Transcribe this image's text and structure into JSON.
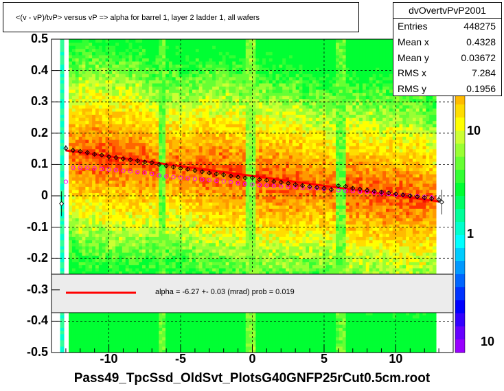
{
  "chart_data": {
    "type": "heatmap",
    "title": "<(v - vP)/tvP> versus  vP => alpha for barrel 1, layer 2 ladder 1, all wafers",
    "xlim": [
      -14,
      14
    ],
    "ylim": [
      -0.5,
      0.5
    ],
    "x_ticks": [
      "-10",
      "-5",
      "0",
      "5",
      "10"
    ],
    "x_tick_values": [
      -10,
      -5,
      0,
      5,
      10
    ],
    "y_ticks": [
      "0.5",
      "0.4",
      "0.3",
      "0.2",
      "0.1",
      "0",
      "-0.1",
      "-0.2",
      "-0.3",
      "-0.4",
      "-0.5"
    ],
    "y_tick_values": [
      0.5,
      0.4,
      0.3,
      0.2,
      0.1,
      0,
      -0.1,
      -0.2,
      -0.3,
      -0.4,
      -0.5
    ],
    "z_scale": "log",
    "z_ticks": [
      "10",
      "1",
      "10"
    ],
    "z_tick_values": [
      10,
      1,
      0.1
    ],
    "grid": true,
    "stats": {
      "name": "dvOvertvPvP2001",
      "rows": [
        {
          "key": "Entries",
          "value": "448275"
        },
        {
          "key": "Mean x",
          "value": "0.4328"
        },
        {
          "key": "Mean y",
          "value": "0.03672"
        },
        {
          "key": "RMS x",
          "value": "7.284"
        },
        {
          "key": "RMS y",
          "value": "0.1956"
        }
      ]
    },
    "fit": {
      "text": "alpha =   -6.27 +-  0.03 (mrad) prob = 0.019",
      "x": [
        -13,
        13
      ],
      "y": [
        0.145,
        -0.018
      ],
      "color": "#ff0000"
    },
    "profile_black": {
      "x": [
        -13.0,
        -12.5,
        -12.0,
        -11.5,
        -11.0,
        -10.5,
        -10.0,
        -9.5,
        -9.0,
        -8.5,
        -8.0,
        -7.5,
        -7.0,
        -6.5,
        -6.0,
        -5.5,
        -5.0,
        -4.5,
        -4.0,
        -3.5,
        -3.0,
        -2.5,
        -2.0,
        -1.5,
        -1.0,
        -0.5,
        0.0,
        0.5,
        1.0,
        1.5,
        2.0,
        2.5,
        3.0,
        3.5,
        4.0,
        4.5,
        5.0,
        5.5,
        6.0,
        6.5,
        7.0,
        7.5,
        8.0,
        8.5,
        9.0,
        9.5,
        10.0,
        10.5,
        11.0,
        11.5,
        12.0,
        12.5,
        13.0
      ],
      "y": [
        0.152,
        0.145,
        0.142,
        0.138,
        0.133,
        0.13,
        0.125,
        0.122,
        0.118,
        0.115,
        0.112,
        0.108,
        0.106,
        0.1,
        0.096,
        0.092,
        0.088,
        0.085,
        0.081,
        0.077,
        0.073,
        0.07,
        0.067,
        0.063,
        0.06,
        0.057,
        0.058,
        0.052,
        0.05,
        0.046,
        0.043,
        0.04,
        0.036,
        0.033,
        0.03,
        0.027,
        0.024,
        0.02,
        0.032,
        0.03,
        0.024,
        0.021,
        0.018,
        0.015,
        0.012,
        0.009,
        0.006,
        0.003,
        0.0,
        -0.003,
        -0.006,
        -0.009,
        -0.012
      ],
      "err": [
        0.01,
        0.008,
        0.005,
        0.004,
        0.004,
        0.004,
        0.004,
        0.004,
        0.004,
        0.004,
        0.004,
        0.004,
        0.005,
        0.006,
        0.006,
        0.005,
        0.005,
        0.005,
        0.005,
        0.005,
        0.005,
        0.005,
        0.005,
        0.005,
        0.005,
        0.005,
        0.005,
        0.005,
        0.005,
        0.005,
        0.005,
        0.005,
        0.005,
        0.005,
        0.005,
        0.005,
        0.005,
        0.006,
        0.006,
        0.005,
        0.005,
        0.005,
        0.005,
        0.005,
        0.005,
        0.005,
        0.005,
        0.005,
        0.005,
        0.005,
        0.006,
        0.008,
        0.01
      ]
    },
    "profile_magenta": {
      "x": [
        -13.0,
        -12.5,
        -12.0,
        -11.5,
        -11.0,
        -10.5,
        -10.0,
        -9.5,
        -9.0,
        -8.5,
        -8.0,
        -7.5,
        -7.0,
        -6.5,
        -6.0,
        -5.5,
        -5.0,
        -4.5,
        -4.0,
        -3.5,
        -3.0,
        -2.5,
        -2.0,
        -1.5,
        -1.0,
        -0.5,
        0.0,
        0.5,
        1.0,
        1.5,
        2.0,
        2.5,
        3.0,
        3.5,
        4.0,
        4.5,
        5.0,
        5.5,
        6.0,
        6.5,
        7.0,
        7.5,
        8.0,
        8.5,
        9.0,
        9.5,
        10.0,
        10.5,
        11.0,
        11.5,
        12.0,
        12.5
      ],
      "y": [
        0.045,
        0.09,
        0.09,
        0.09,
        0.088,
        0.086,
        0.084,
        0.082,
        0.08,
        0.078,
        0.076,
        0.074,
        0.07,
        0.065,
        0.062,
        0.06,
        0.058,
        0.056,
        0.054,
        0.052,
        0.05,
        0.048,
        0.046,
        0.044,
        0.04,
        0.038,
        0.036,
        0.034,
        0.033,
        0.032,
        0.03,
        0.029,
        0.028,
        0.026,
        0.025,
        0.024,
        0.022,
        0.02,
        0.018,
        0.016,
        0.015,
        0.013,
        0.012,
        0.01,
        0.008,
        0.006,
        0.004,
        0.003,
        0.001,
        -0.001,
        -0.003,
        -0.005
      ]
    },
    "outlier_points": [
      {
        "x": -13.3,
        "y": -0.025
      },
      {
        "x": 13.2,
        "y": -0.02
      }
    ]
  },
  "footer": "Pass49_TpcSsd_OldSvt_PlotsG40GNFP25rCut0.5cm.root"
}
